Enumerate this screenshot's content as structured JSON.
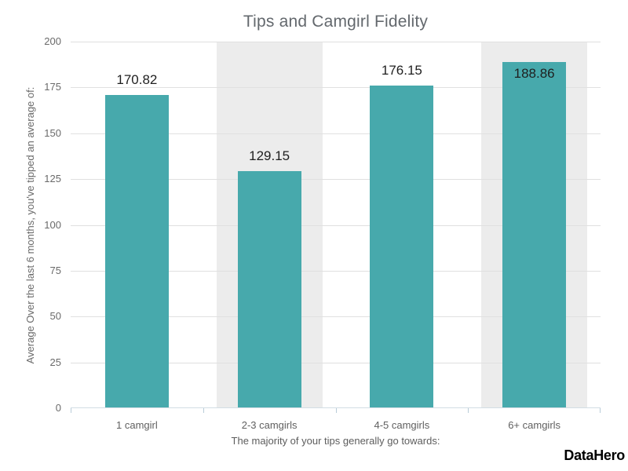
{
  "title": "Tips and Camgirl Fidelity",
  "branding": {
    "logo_text": "DataHero"
  },
  "chart_data": {
    "type": "bar",
    "title": "Tips and Camgirl Fidelity",
    "categories": [
      "1 camgirl",
      "2-3 camgirls",
      "4-5 camgirls",
      "6+ camgirls"
    ],
    "values": [
      170.82,
      129.15,
      176.15,
      188.86
    ],
    "value_labels": [
      "170.82",
      "129.15",
      "176.15",
      "188.86"
    ],
    "xlabel": "The majority of your tips generally go towards:",
    "ylabel": "Average Over the last 6 months, you've tipped an average of:",
    "ylim": [
      0,
      200
    ],
    "yticks": [
      0,
      25,
      50,
      75,
      100,
      125,
      150,
      175,
      200
    ],
    "grid": "horizontal",
    "legend": "none",
    "striped_categories": [
      1,
      3
    ],
    "colors": {
      "bar": "#47a9ac",
      "stripe": "#ececec",
      "gridline": "#e0e0e0",
      "axis_line": "#d2dde4",
      "tick_mark": "#b9ccd8",
      "title_text": "#63686d",
      "tick_text": "#6a6a6a",
      "value_text": "#1f1f1f",
      "logo_text": "#000000"
    }
  }
}
